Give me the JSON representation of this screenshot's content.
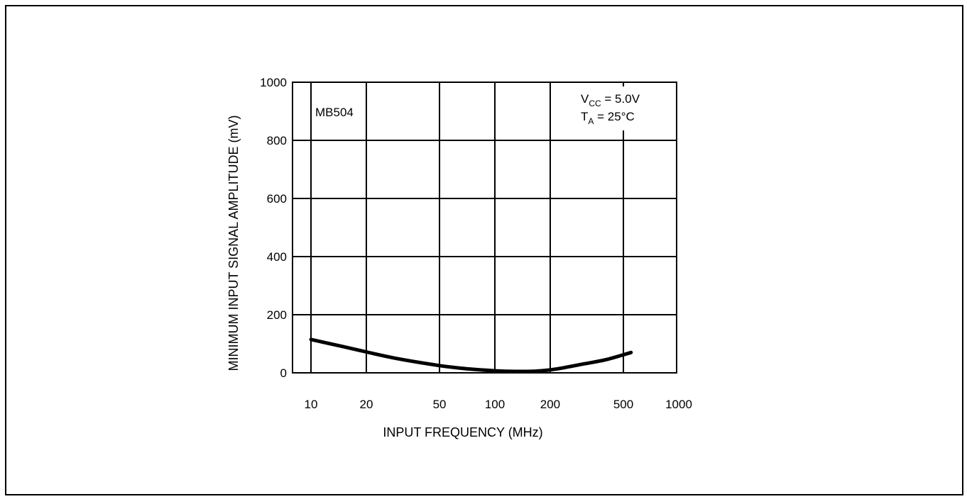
{
  "chart_data": {
    "type": "line",
    "xlabel": "INPUT FREQUENCY (MHz)",
    "ylabel": "MINIMUM INPUT SIGNAL AMPLITUDE (mV)",
    "x_scale": "log",
    "xlim": [
      10,
      1000
    ],
    "ylim": [
      0,
      1000
    ],
    "x_ticks": [
      10,
      20,
      50,
      100,
      200,
      500,
      1000
    ],
    "x_tick_labels": [
      "10",
      "20",
      "50",
      "100",
      "200",
      "500",
      "1000"
    ],
    "y_ticks": [
      0,
      200,
      400,
      600,
      800,
      1000
    ],
    "y_tick_labels": [
      "0",
      "200",
      "400",
      "600",
      "800",
      "1000"
    ],
    "grid": true,
    "device_label": "MB504",
    "conditions": {
      "vcc": {
        "symbol": "V",
        "subscript": "CC",
        "value": " = 5.0V"
      },
      "ta": {
        "symbol": "T",
        "subscript": "A",
        "value": " = 25°C"
      }
    },
    "series": [
      {
        "x": [
          10,
          15,
          20,
          30,
          50,
          70,
          100,
          130,
          170,
          220,
          300,
          400,
          550
        ],
        "y": [
          115,
          90,
          72,
          48,
          25,
          14,
          7,
          5,
          6,
          14,
          30,
          45,
          70
        ]
      }
    ]
  }
}
